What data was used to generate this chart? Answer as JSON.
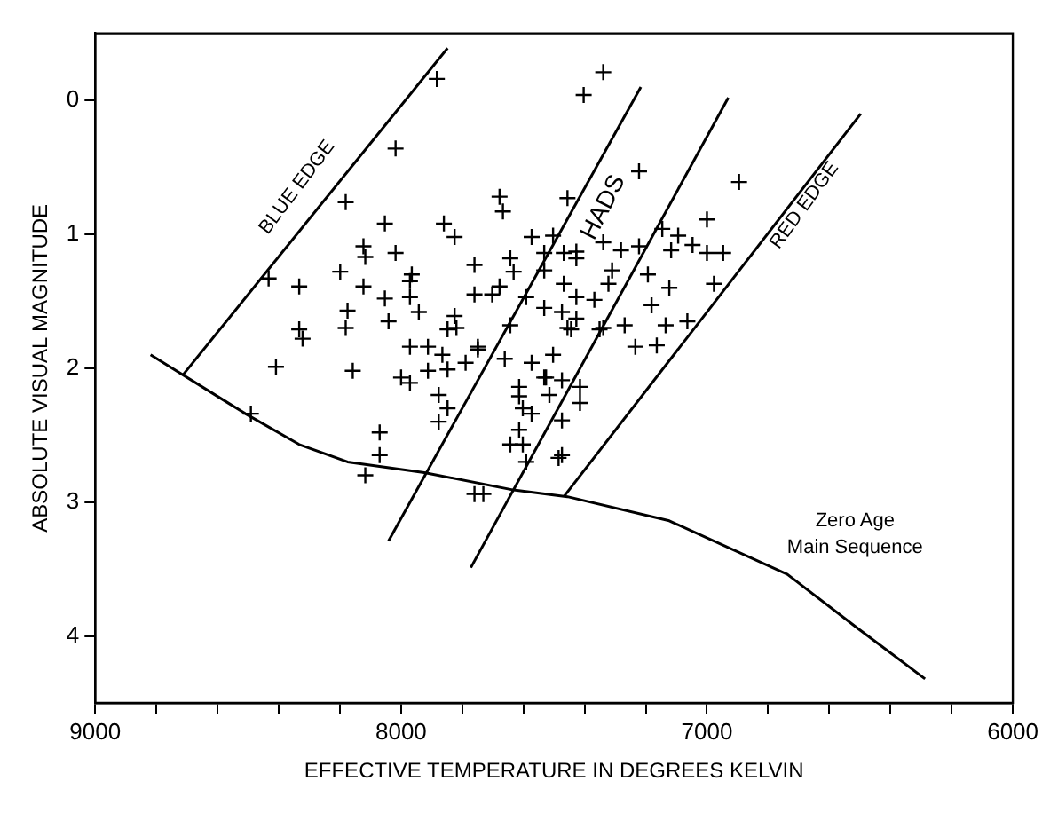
{
  "chart_data": {
    "type": "scatter",
    "xlabel": "EFFECTIVE TEMPERATURE IN DEGREES KELVIN",
    "ylabel": "ABSOLUTE VISUAL MAGNITUDE",
    "xlim": [
      9000,
      6000
    ],
    "ylim": [
      4.5,
      -0.5
    ],
    "xticks": [
      9000,
      {
        "value": 8800,
        "label": null
      },
      {
        "value": 8600,
        "label": null
      },
      {
        "value": 8400,
        "label": null
      },
      {
        "value": 8200,
        "label": null
      },
      8000,
      {
        "value": 7800,
        "label": null
      },
      {
        "value": 7600,
        "label": null
      },
      {
        "value": 7400,
        "label": null
      },
      {
        "value": 7200,
        "label": null
      },
      7000,
      {
        "value": 6800,
        "label": null
      },
      {
        "value": 6600,
        "label": null
      },
      {
        "value": 6400,
        "label": null
      },
      {
        "value": 6200,
        "label": null
      },
      6000
    ],
    "yticks": [
      0,
      1,
      2,
      3,
      4
    ],
    "grid": false,
    "legend": false,
    "annotations": [
      "BLUE EDGE",
      "HADS",
      "RED EDGE",
      "Zero Age\nMain Sequence"
    ],
    "series": [
      {
        "marker": "cross",
        "color": "#000000",
        "x": [
          7883,
          8018,
          8181,
          8053,
          7860,
          7825,
          7678,
          7667,
          7573,
          7503,
          7456,
          8123,
          8117,
          8018,
          8199,
          7965,
          7971,
          7760,
          7643,
          7632,
          7532,
          7468,
          7427,
          8333,
          8433,
          8123,
          8053,
          7971,
          7760,
          7702,
          7678,
          8175,
          8181,
          8041,
          7942,
          7825,
          7819,
          8333,
          8322,
          7971,
          7912,
          7848,
          7749,
          7591,
          7532,
          7474,
          7427,
          7427,
          7468,
          7643,
          8409,
          8158,
          8000,
          7971,
          7912,
          7865,
          7848,
          7789,
          7749,
          7661,
          7573,
          7503,
          7526,
          7474,
          7415,
          7614,
          7614,
          7602,
          7573,
          7515,
          7474,
          7415,
          7877,
          7848,
          7877,
          7614,
          7643,
          7602,
          7591,
          7474,
          8070,
          8070,
          8117,
          8491,
          7760,
          7731,
          7339,
          7403,
          7222,
          6895,
          7000,
          7532,
          7339,
          7281,
          7222,
          7427,
          7146,
          7094,
          7117,
          7047,
          7000,
          6947,
          7368,
          7322,
          7310,
          7193,
          7123,
          6977,
          7181,
          7456,
          7339,
          7269,
          7135,
          7064,
          7234,
          7164,
          7444,
          7351,
          7532,
          7485
        ],
        "values": [
          -0.16,
          0.36,
          0.76,
          0.92,
          0.92,
          1.02,
          0.72,
          0.83,
          1.02,
          1.01,
          0.73,
          1.09,
          1.17,
          1.14,
          1.28,
          1.3,
          1.35,
          1.23,
          1.18,
          1.28,
          1.27,
          1.14,
          1.13,
          1.39,
          1.33,
          1.39,
          1.48,
          1.47,
          1.45,
          1.45,
          1.39,
          1.57,
          1.7,
          1.65,
          1.58,
          1.61,
          1.7,
          1.71,
          1.78,
          1.84,
          1.84,
          1.71,
          1.84,
          1.47,
          1.55,
          1.58,
          1.63,
          1.47,
          1.37,
          1.68,
          1.99,
          2.02,
          2.07,
          2.11,
          2.02,
          1.9,
          2.01,
          1.96,
          1.86,
          1.93,
          1.96,
          1.9,
          2.07,
          2.09,
          2.14,
          2.14,
          2.21,
          2.3,
          2.34,
          2.2,
          2.39,
          2.26,
          2.2,
          2.3,
          2.4,
          2.46,
          2.57,
          2.57,
          2.7,
          2.65,
          2.48,
          2.65,
          2.8,
          2.34,
          2.94,
          2.94,
          -0.21,
          -0.04,
          0.53,
          0.61,
          0.89,
          1.14,
          1.06,
          1.12,
          1.09,
          1.18,
          0.96,
          1.01,
          1.12,
          1.08,
          1.14,
          1.14,
          1.49,
          1.37,
          1.27,
          1.3,
          1.4,
          1.37,
          1.53,
          1.7,
          1.7,
          1.68,
          1.68,
          1.65,
          1.84,
          1.83,
          1.71,
          1.71,
          2.07,
          2.67
        ]
      },
      {
        "type": "line",
        "marker": "none",
        "color": "#000000",
        "x": [
          8713,
          7848
        ],
        "values": [
          2.05,
          -0.39
        ]
      },
      {
        "type": "line",
        "marker": "none",
        "color": "#000000",
        "x": [
          8041,
          7216
        ],
        "values": [
          3.29,
          -0.1
        ]
      },
      {
        "type": "line",
        "marker": "none",
        "color": "#000000",
        "x": [
          7772,
          6930
        ],
        "values": [
          3.49,
          -0.02
        ]
      },
      {
        "type": "line",
        "marker": "none",
        "color": "#000000",
        "x": [
          7468,
          6497
        ],
        "values": [
          2.96,
          0.1
        ]
      },
      {
        "type": "line",
        "marker": "none",
        "color": "#000000",
        "x": [
          8819,
          8509,
          8333,
          8175,
          7924,
          7632,
          7456,
          7123,
          6737,
          6503,
          6287
        ],
        "values": [
          1.9,
          2.34,
          2.57,
          2.7,
          2.78,
          2.91,
          2.96,
          3.14,
          3.54,
          3.95,
          4.32
        ]
      }
    ]
  }
}
